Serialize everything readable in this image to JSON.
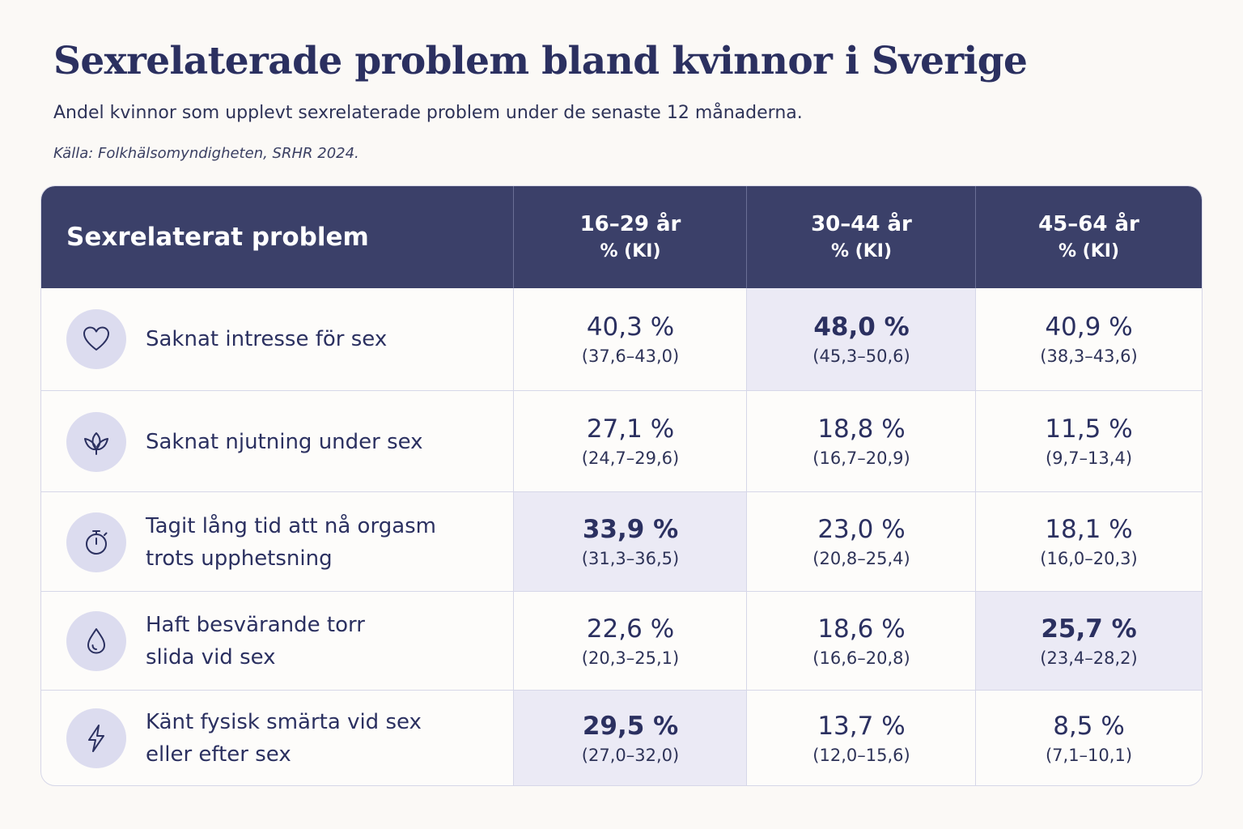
{
  "title": "Sexrelaterade problem bland kvinnor i Sverige",
  "subtitle": "Andel kvinnor som upplevt sexrelaterade problem under de senaste 12 månaderna.",
  "source": "Källa: Folkhälsomyndigheten, SRHR 2024.",
  "chart_data": {
    "type": "table",
    "title": "Sexrelaterade problem bland kvinnor i Sverige",
    "columns": [
      {
        "header": "Sexrelaterat problem"
      },
      {
        "age": "16–29 år",
        "unit": "% (KI)"
      },
      {
        "age": "30–44 år",
        "unit": "% (KI)"
      },
      {
        "age": "45–64 år",
        "unit": "% (KI)"
      }
    ],
    "rows": [
      {
        "icon": "heart-icon",
        "label_lines": [
          "Saknat intresse för sex"
        ],
        "cells": [
          {
            "value": 40.3,
            "pct": "40,3 %",
            "ci": "(37,6–43,0)",
            "highlight": false
          },
          {
            "value": 48.0,
            "pct": "48,0 %",
            "ci": "(45,3–50,6)",
            "highlight": true
          },
          {
            "value": 40.9,
            "pct": "40,9 %",
            "ci": "(38,3–43,6)",
            "highlight": false
          }
        ]
      },
      {
        "icon": "lotus-icon",
        "label_lines": [
          "Saknat njutning under sex"
        ],
        "cells": [
          {
            "value": 27.1,
            "pct": "27,1 %",
            "ci": "(24,7–29,6)",
            "highlight": false
          },
          {
            "value": 18.8,
            "pct": "18,8 %",
            "ci": "(16,7–20,9)",
            "highlight": false
          },
          {
            "value": 11.5,
            "pct": "11,5 %",
            "ci": "(9,7–13,4)",
            "highlight": false
          }
        ]
      },
      {
        "icon": "stopwatch-icon",
        "label_lines": [
          "Tagit lång tid att nå orgasm",
          "trots upphetsning"
        ],
        "cells": [
          {
            "value": 33.9,
            "pct": "33,9 %",
            "ci": "(31,3–36,5)",
            "highlight": true
          },
          {
            "value": 23.0,
            "pct": "23,0 %",
            "ci": "(20,8–25,4)",
            "highlight": false
          },
          {
            "value": 18.1,
            "pct": "18,1 %",
            "ci": "(16,0–20,3)",
            "highlight": false
          }
        ]
      },
      {
        "icon": "droplet-icon",
        "label_lines": [
          "Haft besvärande torr",
          "slida vid sex"
        ],
        "cells": [
          {
            "value": 22.6,
            "pct": "22,6 %",
            "ci": "(20,3–25,1)",
            "highlight": false
          },
          {
            "value": 18.6,
            "pct": "18,6 %",
            "ci": "(16,6–20,8)",
            "highlight": false
          },
          {
            "value": 25.7,
            "pct": "25,7 %",
            "ci": "(23,4–28,2)",
            "highlight": true
          }
        ]
      },
      {
        "icon": "lightning-icon",
        "label_lines": [
          "Känt fysisk smärta vid sex",
          "eller efter sex"
        ],
        "cells": [
          {
            "value": 29.5,
            "pct": "29,5 %",
            "ci": "(27,0–32,0)",
            "highlight": true
          },
          {
            "value": 13.7,
            "pct": "13,7 %",
            "ci": "(12,0–15,6)",
            "highlight": false
          },
          {
            "value": 8.5,
            "pct": "8,5 %",
            "ci": "(7,1–10,1)",
            "highlight": false
          }
        ]
      }
    ]
  },
  "colors": {
    "header_bg": "#3b4069",
    "highlight_bg": "#ebeaf5",
    "icon_circle": "#dcdcef",
    "text": "#2b3060"
  }
}
